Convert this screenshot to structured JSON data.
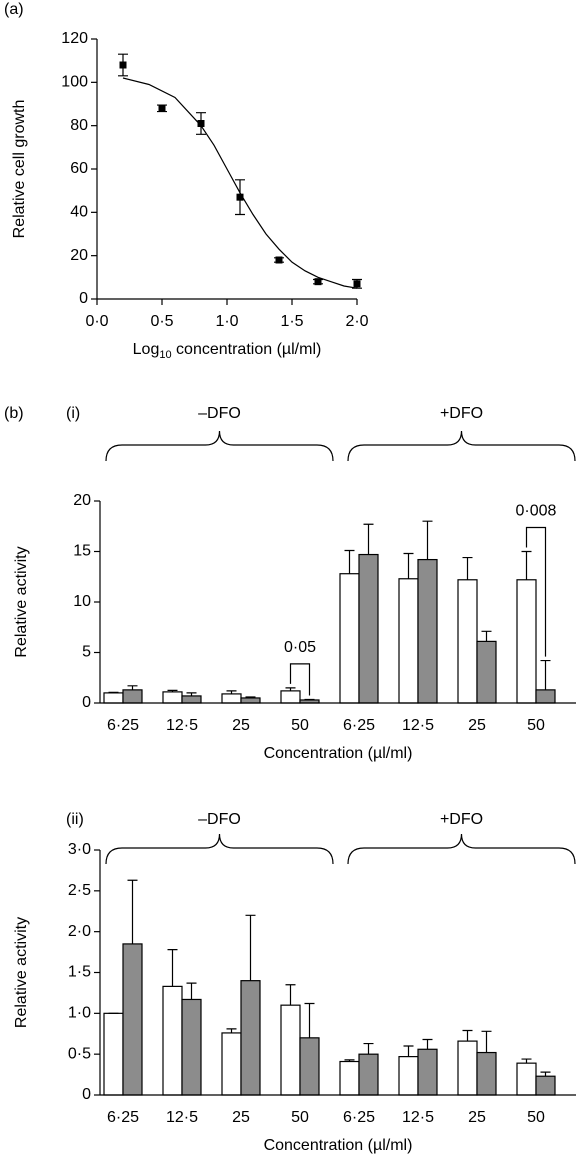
{
  "chart_data": [
    {
      "type": "scatter",
      "panel_label": "(a)",
      "y_label": "Relative cell growth",
      "x_label": [
        "Log",
        "10",
        " concentration (µl/ml)"
      ],
      "x": [
        0.2,
        0.5,
        0.8,
        1.1,
        1.4,
        1.7,
        2.0
      ],
      "values": [
        108,
        88,
        81,
        47,
        18,
        8,
        7
      ],
      "errors": [
        5,
        1.5,
        5,
        8,
        1,
        1,
        2
      ],
      "color": "#000000",
      "fit": {
        "x": [
          0.2,
          0.4,
          0.6,
          0.8,
          0.9,
          1.0,
          1.1,
          1.2,
          1.3,
          1.4,
          1.5,
          1.6,
          1.7,
          1.8,
          1.9,
          2.0
        ],
        "values": [
          102,
          99,
          93,
          80,
          71,
          60,
          49,
          39,
          30,
          23,
          17,
          13,
          10,
          8,
          6,
          5
        ]
      },
      "xlim": [
        0,
        2
      ],
      "ylim": [
        0,
        120
      ],
      "xticks": [
        {
          "value": 0,
          "label": "0·0"
        },
        {
          "value": 0.5,
          "label": "0·5"
        },
        {
          "value": 1,
          "label": "1·0"
        },
        {
          "value": 1.5,
          "label": "1·5"
        },
        {
          "value": 2,
          "label": "2·0"
        }
      ],
      "yticks": [
        0,
        20,
        40,
        60,
        80,
        100,
        120
      ]
    },
    {
      "type": "bar",
      "panel_label": "(b)",
      "sub_label": "(i)",
      "y_label": "Relative activity",
      "x_label": "Concentration (µl/ml)",
      "groups": [
        "–DFO",
        "+DFO"
      ],
      "categories": [
        "6·25",
        "12·5",
        "25",
        "50",
        "6·25",
        "12·5",
        "25",
        "50"
      ],
      "series": [
        {
          "color": "#ffffff",
          "values": [
            1.0,
            1.1,
            0.9,
            1.2,
            12.8,
            12.3,
            12.2,
            12.2
          ],
          "errors": [
            0.05,
            0.15,
            0.3,
            0.3,
            2.3,
            2.5,
            2.2,
            2.8
          ]
        },
        {
          "color": "#8c8c8c",
          "values": [
            1.3,
            0.7,
            0.5,
            0.3,
            14.7,
            14.2,
            6.1,
            1.3
          ],
          "errors": [
            0.4,
            0.3,
            0.1,
            0.05,
            3.0,
            3.8,
            1.0,
            2.9
          ]
        }
      ],
      "annotations": [
        "0·05",
        "0·008"
      ],
      "ylim": [
        0,
        20
      ],
      "yticks": [
        0,
        5,
        10,
        15,
        20
      ]
    },
    {
      "type": "bar",
      "sub_label": "(ii)",
      "y_label": "Relative activity",
      "x_label": "Concentration (µl/ml)",
      "groups": [
        "–DFO",
        "+DFO"
      ],
      "categories": [
        "6·25",
        "12·5",
        "25",
        "50",
        "6·25",
        "12·5",
        "25",
        "50"
      ],
      "series": [
        {
          "color": "#ffffff",
          "values": [
            1.0,
            1.33,
            0.76,
            1.1,
            0.41,
            0.47,
            0.66,
            0.39
          ],
          "errors": [
            0,
            0.45,
            0.05,
            0.25,
            0.02,
            0.13,
            0.13,
            0.05
          ]
        },
        {
          "color": "#8c8c8c",
          "values": [
            1.85,
            1.17,
            1.4,
            0.7,
            0.5,
            0.56,
            0.52,
            0.23
          ],
          "errors": [
            0.78,
            0.2,
            0.8,
            0.42,
            0.13,
            0.12,
            0.26,
            0.05
          ]
        }
      ],
      "ylim": [
        0,
        3
      ],
      "yticks": [
        0,
        {
          "value": 0.5,
          "label": "0·5"
        },
        {
          "value": 1,
          "label": "1·0"
        },
        {
          "value": 1.5,
          "label": "1·5"
        },
        {
          "value": 2,
          "label": "2·0"
        },
        {
          "value": 2.5,
          "label": "2·5"
        },
        {
          "value": 3,
          "label": "3·0"
        }
      ]
    }
  ]
}
